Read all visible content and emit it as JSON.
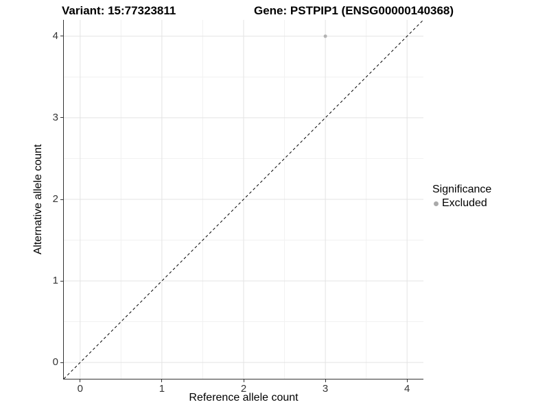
{
  "chart_data": {
    "type": "scatter",
    "title_left": "Variant: 15:77323811",
    "title_right": "Gene: PSTPIP1 (ENSG00000140368)",
    "xlabel": "Reference allele count",
    "ylabel": "Alternative allele count",
    "xlim": [
      -0.2,
      4.2
    ],
    "ylim": [
      -0.2,
      4.2
    ],
    "xticks": [
      0,
      1,
      2,
      3,
      4
    ],
    "yticks": [
      0,
      1,
      2,
      3,
      4
    ],
    "minor_xticks": [
      0.5,
      1.5,
      2.5,
      3.5
    ],
    "minor_yticks": [
      0.5,
      1.5,
      2.5,
      3.5
    ],
    "grid": true,
    "points": [
      {
        "x": 3,
        "y": 4,
        "series": "Excluded",
        "color": "#b3b3b3",
        "radius": 2.5
      }
    ],
    "identity_line": {
      "style": "dashed",
      "slope": 1,
      "intercept": 0,
      "color": "#000000"
    },
    "legend": {
      "title": "Significance",
      "position": "right",
      "entries": [
        {
          "label": "Excluded",
          "color": "#aaaaaa"
        }
      ]
    },
    "colors": {
      "grid_major": "#e3e3e3",
      "grid_minor": "#f1f1f1",
      "axis_line": "#333333",
      "background": "#ffffff"
    }
  }
}
